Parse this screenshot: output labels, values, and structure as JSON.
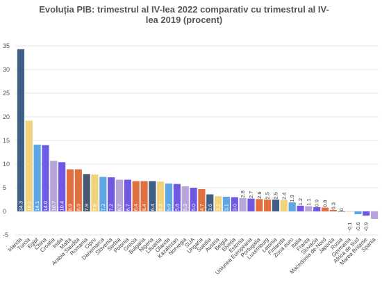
{
  "chart_data": {
    "type": "bar",
    "title": "Evoluția PIB: trimestrul al IV-lea 2022 comparativ cu trimestrul al IV-lea 2019 (procent)",
    "xlabel": "",
    "ylabel": "",
    "ylim": [
      -5,
      35
    ],
    "yticks": [
      -5,
      0,
      5,
      10,
      15,
      20,
      25,
      30,
      35
    ],
    "grid": true,
    "legend": "none",
    "categories": [
      "Irlanda",
      "Turcia",
      "Egipt",
      "China",
      "Croatia",
      "India",
      "Malta",
      "Arabia Saudita",
      "Romania",
      "Cipru",
      "Danemarca",
      "Slovenia",
      "Serbia",
      "Polonia",
      "Grecia",
      "Bulgaria",
      "Nigeria",
      "Lituania",
      "Olanda",
      "Kazahstan",
      "Norvegia",
      "SUA",
      "Ungaria",
      "Suedia",
      "Austria",
      "Belgia",
      "Elveția",
      "Estonia",
      "Uniunea Europeana",
      "Portugalia",
      "Luxemburg",
      "Letonia",
      "Finlanda",
      "Zona euro",
      "Italia",
      "Franta",
      "Slovacia",
      "Macedonia de Nord",
      "Japonia",
      "Rusia",
      "Germania",
      "Africa de Sud",
      "Marea Britanie",
      "Spania"
    ],
    "values": [
      34.3,
      19.2,
      14.1,
      14.0,
      10.7,
      10.4,
      8.9,
      8.9,
      7.9,
      7.8,
      7.3,
      7.2,
      6.7,
      6.7,
      6.4,
      6.4,
      6.4,
      6.3,
      5.9,
      5.8,
      5.3,
      5.0,
      4.7,
      3.6,
      3.2,
      3.1,
      3.0,
      2.8,
      2.7,
      2.6,
      2.5,
      2.5,
      2.4,
      1.9,
      1.2,
      1.1,
      0.9,
      0.8,
      0.3,
      0.0,
      -0.1,
      -0.6,
      -0.9,
      -1.6
    ],
    "value_labels": [
      "34.3",
      "19.2",
      "14.1",
      "14.0",
      "10.7",
      "10.4",
      "8.9",
      "8.9",
      "7.9",
      "7.8",
      "7.3",
      "7.2",
      "6.7",
      "6.7",
      "6.4",
      "6.4",
      "6.4",
      "6.3",
      "5.9",
      "5.8",
      "5.3",
      "5.0",
      "4.7",
      "3.6",
      "3.2",
      "3.1",
      "3.0",
      "2.8",
      "2.7",
      "2.6",
      "2.5",
      "2.5",
      "2.4",
      "1.9",
      "1.2",
      "1.1",
      "0.9",
      "0.8",
      "0.3",
      "0",
      "-0.1",
      "-0.6",
      "-0.9",
      ""
    ],
    "colors": [
      "#3f5f86",
      "#f2d27a",
      "#5da6e3",
      "#6d5ce6",
      "#b7a5da",
      "#7158e2",
      "#e0703f",
      "#e0703f",
      "#4a5a6e",
      "#f2d27a",
      "#5da6e3",
      "#7158e2",
      "#b7a5da",
      "#7158e2",
      "#e0703f",
      "#e0703f",
      "#3f5f86",
      "#f2d27a",
      "#5da6e3",
      "#7158e2",
      "#b7a5da",
      "#7158e2",
      "#e0703f",
      "#3f5f86",
      "#f2d27a",
      "#5da6e3",
      "#7158e2",
      "#b7a5da",
      "#7158e2",
      "#e0703f",
      "#e0703f",
      "#3f5f86",
      "#f2d27a",
      "#5da6e3",
      "#7158e2",
      "#b7a5da",
      "#7158e2",
      "#e0703f",
      "#e0703f",
      "#3f5f86",
      "#f2d27a",
      "#5da6e3",
      "#7158e2",
      "#b7a5da"
    ],
    "gridline_color": "#e6e6e6",
    "axis_text_color": "#555555"
  }
}
